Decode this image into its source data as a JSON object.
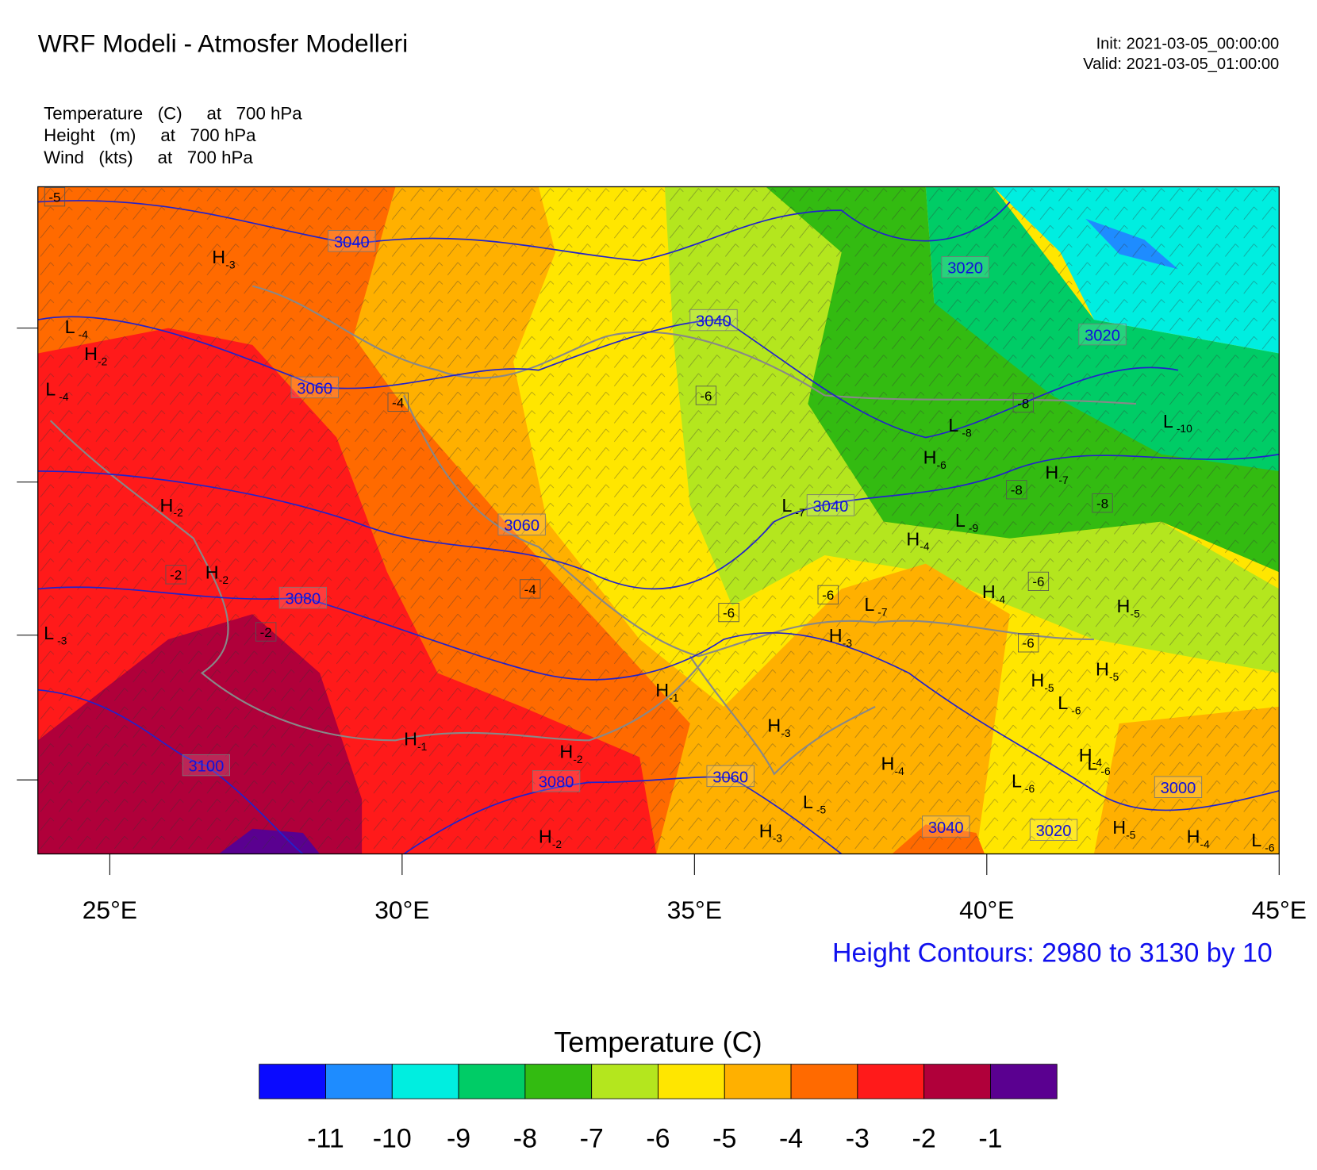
{
  "header": {
    "title": "WRF Modeli - Atmosfer Modelleri",
    "init": "Init: 2021-03-05_00:00:00",
    "valid": "Valid: 2021-03-05_01:00:00",
    "fields": [
      "Temperature   (C)     at   700 hPa",
      "Height   (m)     at   700 hPa",
      "Wind   (kts)     at   700 hPa"
    ]
  },
  "map": {
    "lonlim": [
      23.77,
      45
    ],
    "xticks": [
      {
        "value": 25,
        "label": "25°E"
      },
      {
        "value": 30,
        "label": "30°E"
      },
      {
        "value": 35,
        "label": "35°E"
      },
      {
        "value": 40,
        "label": "40°E"
      },
      {
        "value": 45,
        "label": "45°E"
      }
    ],
    "contour_labels": [
      "3040",
      "3040",
      "3020",
      "3020",
      "3060",
      "3040",
      "3060",
      "3080",
      "3100",
      "3080",
      "3060",
      "3040",
      "3020",
      "3000"
    ],
    "temperature_labels": [
      "-4",
      "-6",
      "-8",
      "-8",
      "-8",
      "-2",
      "-2",
      "-4",
      "-6",
      "-6",
      "-6",
      "-6",
      "-5"
    ],
    "centers": [
      {
        "letter": "H",
        "sub": "-3"
      },
      {
        "letter": "L",
        "sub": "-4"
      },
      {
        "letter": "H",
        "sub": "-2"
      },
      {
        "letter": "L",
        "sub": "-4"
      },
      {
        "letter": "H",
        "sub": "-2"
      },
      {
        "letter": "H",
        "sub": "-2"
      },
      {
        "letter": "L",
        "sub": "-3"
      },
      {
        "letter": "H",
        "sub": "-1"
      },
      {
        "letter": "H",
        "sub": "-1"
      },
      {
        "letter": "H",
        "sub": "-2"
      },
      {
        "letter": "H",
        "sub": "-2"
      },
      {
        "letter": "H",
        "sub": "-3"
      },
      {
        "letter": "H",
        "sub": "-3"
      },
      {
        "letter": "L",
        "sub": "-5"
      },
      {
        "letter": "H",
        "sub": "-4"
      },
      {
        "letter": "H",
        "sub": "-3"
      },
      {
        "letter": "L",
        "sub": "-7"
      },
      {
        "letter": "H",
        "sub": "-4"
      },
      {
        "letter": "L",
        "sub": "-7"
      },
      {
        "letter": "L",
        "sub": "-8"
      },
      {
        "letter": "H",
        "sub": "-6"
      },
      {
        "letter": "L",
        "sub": "-9"
      },
      {
        "letter": "H",
        "sub": "-7"
      },
      {
        "letter": "L",
        "sub": "-10"
      },
      {
        "letter": "H",
        "sub": "-4"
      },
      {
        "letter": "H",
        "sub": "-5"
      },
      {
        "letter": "H",
        "sub": "-5"
      },
      {
        "letter": "H",
        "sub": "-5"
      },
      {
        "letter": "L",
        "sub": "-6"
      },
      {
        "letter": "H",
        "sub": "-4"
      },
      {
        "letter": "L",
        "sub": "-6"
      },
      {
        "letter": "L",
        "sub": "-6"
      },
      {
        "letter": "H",
        "sub": "-5"
      },
      {
        "letter": "H",
        "sub": "-4"
      },
      {
        "letter": "L",
        "sub": "-6"
      }
    ],
    "contour_note": "Height Contours: 2980 to 3130 by 10"
  },
  "colorbar": {
    "title": "Temperature  (C)",
    "labels": [
      -11,
      -10,
      -9,
      -8,
      -7,
      -6,
      -5,
      -4,
      -3,
      -2,
      -1
    ],
    "colors": [
      "#0a0aff",
      "#1e8cff",
      "#00eee0",
      "#00cc66",
      "#33bb11",
      "#b4e61e",
      "#ffe600",
      "#ffb000",
      "#ff6a00",
      "#ff1a1a",
      "#b0003a",
      "#5a0090"
    ]
  }
}
